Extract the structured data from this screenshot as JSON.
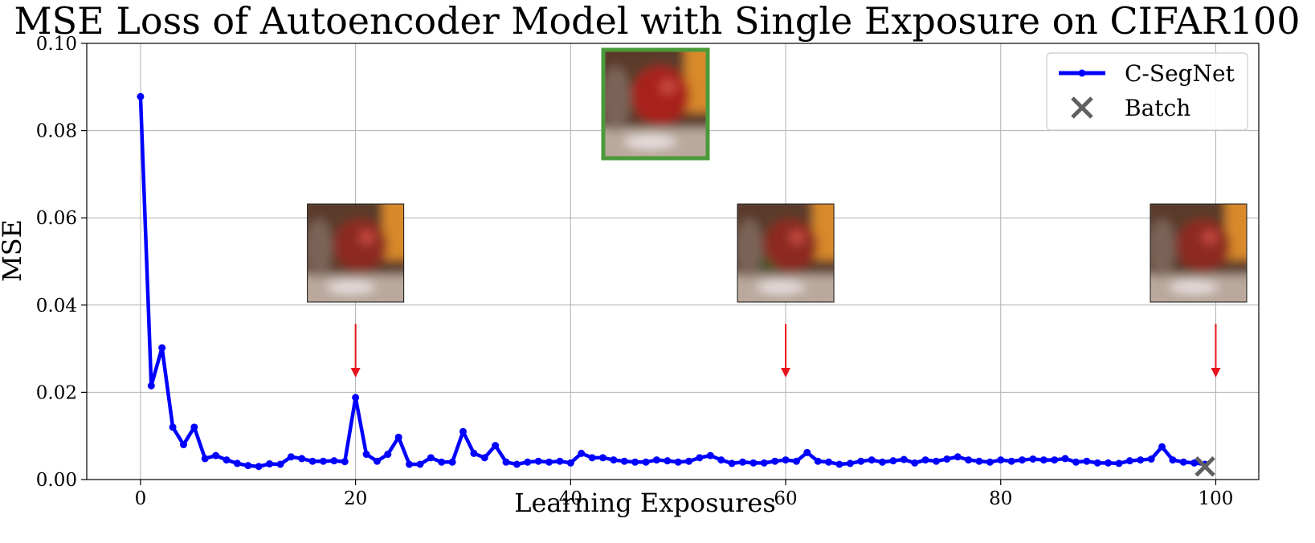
{
  "chart_data": {
    "type": "line",
    "title": "MSE Loss of Autoencoder Model with Single Exposure on CIFAR100",
    "xlabel": "Learning Exposures",
    "ylabel": "MSE",
    "xlim": [
      -5,
      104
    ],
    "ylim": [
      0,
      0.1
    ],
    "xticks": [
      0,
      20,
      40,
      60,
      80,
      100
    ],
    "yticks": [
      0.0,
      0.02,
      0.04,
      0.06,
      0.08,
      0.1
    ],
    "xtick_labels": [
      "0",
      "20",
      "40",
      "60",
      "80",
      "100"
    ],
    "ytick_labels": [
      "0.00",
      "0.02",
      "0.04",
      "0.06",
      "0.08",
      "0.10"
    ],
    "grid": true,
    "legend_position": "top-right",
    "series": [
      {
        "name": "C-SegNet",
        "color": "#0000ff",
        "marker": "circle",
        "x": [
          0,
          1,
          2,
          3,
          4,
          5,
          6,
          7,
          8,
          9,
          10,
          11,
          12,
          13,
          14,
          15,
          16,
          17,
          18,
          19,
          20,
          21,
          22,
          23,
          24,
          25,
          26,
          27,
          28,
          29,
          30,
          31,
          32,
          33,
          34,
          35,
          36,
          37,
          38,
          39,
          40,
          41,
          42,
          43,
          44,
          45,
          46,
          47,
          48,
          49,
          50,
          51,
          52,
          53,
          54,
          55,
          56,
          57,
          58,
          59,
          60,
          61,
          62,
          63,
          64,
          65,
          66,
          67,
          68,
          69,
          70,
          71,
          72,
          73,
          74,
          75,
          76,
          77,
          78,
          79,
          80,
          81,
          82,
          83,
          84,
          85,
          86,
          87,
          88,
          89,
          90,
          91,
          92,
          93,
          94,
          95,
          96,
          97,
          98,
          99
        ],
        "values": [
          0.0878,
          0.0215,
          0.0302,
          0.012,
          0.008,
          0.012,
          0.0048,
          0.0055,
          0.0045,
          0.0037,
          0.0032,
          0.003,
          0.0036,
          0.0035,
          0.0052,
          0.0048,
          0.0042,
          0.0042,
          0.0043,
          0.0041,
          0.0188,
          0.0058,
          0.0042,
          0.0058,
          0.0097,
          0.0035,
          0.0035,
          0.005,
          0.004,
          0.004,
          0.011,
          0.006,
          0.005,
          0.0078,
          0.004,
          0.0035,
          0.004,
          0.0042,
          0.004,
          0.0042,
          0.0038,
          0.006,
          0.005,
          0.005,
          0.0045,
          0.0042,
          0.004,
          0.004,
          0.0045,
          0.0043,
          0.004,
          0.0042,
          0.005,
          0.0055,
          0.0045,
          0.0037,
          0.004,
          0.0038,
          0.0038,
          0.0042,
          0.0045,
          0.0042,
          0.0062,
          0.0042,
          0.004,
          0.0035,
          0.0037,
          0.0042,
          0.0045,
          0.004,
          0.0043,
          0.0046,
          0.0038,
          0.0045,
          0.0042,
          0.0047,
          0.0052,
          0.0045,
          0.0042,
          0.004,
          0.0045,
          0.0042,
          0.0045,
          0.0047,
          0.0045,
          0.0045,
          0.0048,
          0.004,
          0.0042,
          0.0038,
          0.0038,
          0.0037,
          0.0043,
          0.0045,
          0.0047,
          0.0075,
          0.0045,
          0.004,
          0.0038,
          0.0035
        ]
      },
      {
        "name": "Batch",
        "color": "#606060",
        "marker": "x",
        "x": [
          99
        ],
        "values": [
          0.003
        ]
      }
    ],
    "annotations": {
      "arrows": [
        {
          "x": 20,
          "y_start": 0.0357,
          "y_end": 0.0245,
          "color": "#e8141c"
        },
        {
          "x": 60,
          "y_start": 0.0357,
          "y_end": 0.0245,
          "color": "#e8141c"
        },
        {
          "x": 100,
          "y_start": 0.0357,
          "y_end": 0.0245,
          "color": "#e8141c"
        }
      ],
      "thumbnails": [
        {
          "name": "reconstruction-thumbnail-exposure-20",
          "x": 20,
          "highlight": false
        },
        {
          "name": "reconstruction-thumbnail-exposure-60",
          "x": 60,
          "highlight": false
        },
        {
          "name": "reconstruction-thumbnail-exposure-100",
          "x": 100,
          "highlight": false
        },
        {
          "name": "original-image-thumbnail",
          "x": 48,
          "highlight": true,
          "highlight_color": "#4a9a3a"
        }
      ]
    }
  }
}
